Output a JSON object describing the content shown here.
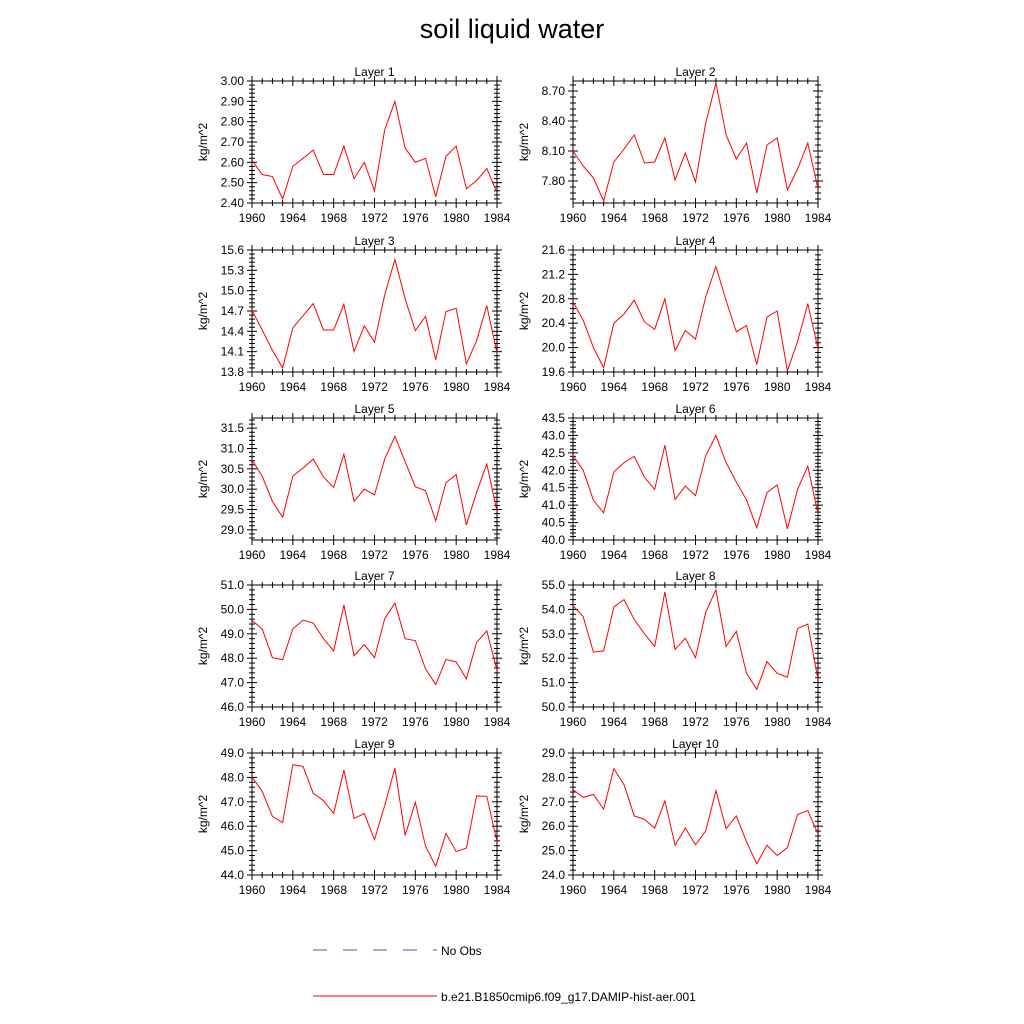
{
  "title": "soil liquid water",
  "legend": {
    "obs_label": "No Obs",
    "model_label": "b.e21.B1850cmip6.f09_g17.DAMIP-hist-aer.001",
    "obs_color": "#4a5aa8",
    "model_color": "#ff0000"
  },
  "chart_data": [
    {
      "type": "line",
      "title": "Layer 1",
      "ylabel": "kg/m^2",
      "xlim": [
        1960,
        1984
      ],
      "xticks": [
        "1960",
        "1964",
        "1968",
        "1972",
        "1976",
        "1980",
        "1984"
      ],
      "ylim": [
        2.4,
        3.0
      ],
      "yticks": [
        "2.40",
        "2.50",
        "2.60",
        "2.70",
        "2.80",
        "2.90",
        "3.00"
      ],
      "x": [
        1960,
        1961,
        1962,
        1963,
        1964,
        1965,
        1966,
        1967,
        1968,
        1969,
        1970,
        1971,
        1972,
        1973,
        1974,
        1975,
        1976,
        1977,
        1978,
        1979,
        1980,
        1981,
        1982,
        1983,
        1984
      ],
      "series": [
        {
          "name": "b.e21.B1850cmip6.f09_g17.DAMIP-hist-aer.001",
          "values": [
            2.61,
            2.54,
            2.53,
            2.42,
            2.58,
            2.62,
            2.66,
            2.54,
            2.54,
            2.68,
            2.52,
            2.6,
            2.46,
            2.76,
            2.9,
            2.67,
            2.6,
            2.62,
            2.43,
            2.63,
            2.68,
            2.47,
            2.51,
            2.57,
            2.45
          ]
        }
      ]
    },
    {
      "type": "line",
      "title": "Layer 2",
      "ylabel": "kg/m^2",
      "xlim": [
        1960,
        1984
      ],
      "xticks": [
        "1960",
        "1964",
        "1968",
        "1972",
        "1976",
        "1980",
        "1984"
      ],
      "ylim": [
        7.58,
        8.8
      ],
      "yticks": [
        "7.80",
        "8.10",
        "8.40",
        "8.70"
      ],
      "x": [
        1960,
        1961,
        1962,
        1963,
        1964,
        1965,
        1966,
        1967,
        1968,
        1969,
        1970,
        1971,
        1972,
        1973,
        1974,
        1975,
        1976,
        1977,
        1978,
        1979,
        1980,
        1981,
        1982,
        1983,
        1984
      ],
      "series": [
        {
          "name": "b.e21.B1850cmip6.f09_g17.DAMIP-hist-aer.001",
          "values": [
            8.1,
            7.95,
            7.83,
            7.6,
            7.99,
            8.12,
            8.26,
            7.98,
            7.99,
            8.23,
            7.81,
            8.08,
            7.79,
            8.38,
            8.78,
            8.26,
            8.02,
            8.18,
            7.68,
            8.16,
            8.23,
            7.71,
            7.92,
            8.18,
            7.72
          ]
        }
      ]
    },
    {
      "type": "line",
      "title": "Layer 3",
      "ylabel": "kg/m^2",
      "xlim": [
        1960,
        1984
      ],
      "xticks": [
        "1960",
        "1964",
        "1968",
        "1972",
        "1976",
        "1980",
        "1984"
      ],
      "ylim": [
        13.8,
        15.6
      ],
      "yticks": [
        "13.8",
        "14.1",
        "14.4",
        "14.7",
        "15.0",
        "15.3",
        "15.6"
      ],
      "x": [
        1960,
        1961,
        1962,
        1963,
        1964,
        1965,
        1966,
        1967,
        1968,
        1969,
        1970,
        1971,
        1972,
        1973,
        1974,
        1975,
        1976,
        1977,
        1978,
        1979,
        1980,
        1981,
        1982,
        1983,
        1984
      ],
      "series": [
        {
          "name": "b.e21.B1850cmip6.f09_g17.DAMIP-hist-aer.001",
          "values": [
            14.71,
            14.42,
            14.12,
            13.86,
            14.45,
            14.63,
            14.81,
            14.42,
            14.42,
            14.8,
            14.1,
            14.48,
            14.24,
            14.94,
            15.46,
            14.88,
            14.41,
            14.62,
            13.98,
            14.69,
            14.74,
            13.92,
            14.26,
            14.78,
            14.08
          ]
        }
      ]
    },
    {
      "type": "line",
      "title": "Layer 4",
      "ylabel": "kg/m^2",
      "xlim": [
        1960,
        1984
      ],
      "xticks": [
        "1960",
        "1964",
        "1968",
        "1972",
        "1976",
        "1980",
        "1984"
      ],
      "ylim": [
        19.6,
        21.6
      ],
      "yticks": [
        "19.6",
        "20.0",
        "20.4",
        "20.8",
        "21.2",
        "21.6"
      ],
      "x": [
        1960,
        1961,
        1962,
        1963,
        1964,
        1965,
        1966,
        1967,
        1968,
        1969,
        1970,
        1971,
        1972,
        1973,
        1974,
        1975,
        1976,
        1977,
        1978,
        1979,
        1980,
        1981,
        1982,
        1983,
        1984
      ],
      "series": [
        {
          "name": "b.e21.B1850cmip6.f09_g17.DAMIP-hist-aer.001",
          "values": [
            20.75,
            20.45,
            20.0,
            19.67,
            20.4,
            20.55,
            20.78,
            20.42,
            20.3,
            20.8,
            19.95,
            20.28,
            20.14,
            20.83,
            21.33,
            20.77,
            20.26,
            20.36,
            19.72,
            20.5,
            20.6,
            19.62,
            20.1,
            20.72,
            19.98
          ]
        }
      ]
    },
    {
      "type": "line",
      "title": "Layer 5",
      "ylabel": "kg/m^2",
      "xlim": [
        1960,
        1984
      ],
      "xticks": [
        "1960",
        "1964",
        "1968",
        "1972",
        "1976",
        "1980",
        "1984"
      ],
      "ylim": [
        28.75,
        31.75
      ],
      "yticks": [
        "29.0",
        "29.5",
        "30.0",
        "30.5",
        "31.0",
        "31.5"
      ],
      "x": [
        1960,
        1961,
        1962,
        1963,
        1964,
        1965,
        1966,
        1967,
        1968,
        1969,
        1970,
        1971,
        1972,
        1973,
        1974,
        1975,
        1976,
        1977,
        1978,
        1979,
        1980,
        1981,
        1982,
        1983,
        1984
      ],
      "series": [
        {
          "name": "b.e21.B1850cmip6.f09_g17.DAMIP-hist-aer.001",
          "values": [
            30.72,
            30.32,
            29.7,
            29.31,
            30.32,
            30.52,
            30.74,
            30.3,
            30.04,
            30.86,
            29.7,
            30.0,
            29.86,
            30.74,
            31.3,
            30.68,
            30.06,
            29.96,
            29.22,
            30.16,
            30.36,
            29.12,
            29.92,
            30.62,
            29.45
          ]
        }
      ]
    },
    {
      "type": "line",
      "title": "Layer 6",
      "ylabel": "kg/m^2",
      "xlim": [
        1960,
        1984
      ],
      "xticks": [
        "1960",
        "1964",
        "1968",
        "1972",
        "1976",
        "1980",
        "1984"
      ],
      "ylim": [
        40.0,
        43.5
      ],
      "yticks": [
        "40.0",
        "40.5",
        "41.0",
        "41.5",
        "42.0",
        "42.5",
        "43.0",
        "43.5"
      ],
      "x": [
        1960,
        1961,
        1962,
        1963,
        1964,
        1965,
        1966,
        1967,
        1968,
        1969,
        1970,
        1971,
        1972,
        1973,
        1974,
        1975,
        1976,
        1977,
        1978,
        1979,
        1980,
        1981,
        1982,
        1983,
        1984
      ],
      "series": [
        {
          "name": "b.e21.B1850cmip6.f09_g17.DAMIP-hist-aer.001",
          "values": [
            42.42,
            42.0,
            41.14,
            40.78,
            41.95,
            42.22,
            42.4,
            41.8,
            41.45,
            42.72,
            41.16,
            41.55,
            41.27,
            42.42,
            43.0,
            42.22,
            41.66,
            41.15,
            40.35,
            41.36,
            41.58,
            40.32,
            41.45,
            42.12,
            40.75
          ]
        }
      ]
    },
    {
      "type": "line",
      "title": "Layer 7",
      "ylabel": "kg/m^2",
      "xlim": [
        1960,
        1984
      ],
      "xticks": [
        "1960",
        "1964",
        "1968",
        "1972",
        "1976",
        "1980",
        "1984"
      ],
      "ylim": [
        46.0,
        51.0
      ],
      "yticks": [
        "46.0",
        "47.0",
        "48.0",
        "49.0",
        "50.0",
        "51.0"
      ],
      "x": [
        1960,
        1961,
        1962,
        1963,
        1964,
        1965,
        1966,
        1967,
        1968,
        1969,
        1970,
        1971,
        1972,
        1973,
        1974,
        1975,
        1976,
        1977,
        1978,
        1979,
        1980,
        1981,
        1982,
        1983,
        1984
      ],
      "series": [
        {
          "name": "b.e21.B1850cmip6.f09_g17.DAMIP-hist-aer.001",
          "values": [
            49.55,
            49.2,
            48.02,
            47.94,
            49.2,
            49.56,
            49.44,
            48.8,
            48.3,
            50.18,
            48.1,
            48.56,
            48.02,
            49.62,
            50.26,
            48.8,
            48.72,
            47.56,
            46.92,
            47.95,
            47.85,
            47.15,
            48.65,
            49.12,
            47.5
          ]
        }
      ]
    },
    {
      "type": "line",
      "title": "Layer 8",
      "ylabel": "kg/m^2",
      "xlim": [
        1960,
        1984
      ],
      "xticks": [
        "1960",
        "1964",
        "1968",
        "1972",
        "1976",
        "1980",
        "1984"
      ],
      "ylim": [
        50.0,
        55.0
      ],
      "yticks": [
        "50.0",
        "51.0",
        "52.0",
        "53.0",
        "54.0",
        "55.0"
      ],
      "x": [
        1960,
        1961,
        1962,
        1963,
        1964,
        1965,
        1966,
        1967,
        1968,
        1969,
        1970,
        1971,
        1972,
        1973,
        1974,
        1975,
        1976,
        1977,
        1978,
        1979,
        1980,
        1981,
        1982,
        1983,
        1984
      ],
      "series": [
        {
          "name": "b.e21.B1850cmip6.f09_g17.DAMIP-hist-aer.001",
          "values": [
            54.15,
            53.7,
            52.25,
            52.3,
            54.1,
            54.4,
            53.58,
            53.0,
            52.48,
            54.72,
            52.36,
            52.82,
            52.02,
            53.88,
            54.8,
            52.48,
            53.1,
            51.38,
            50.72,
            51.86,
            51.38,
            51.22,
            53.22,
            53.4,
            51.12
          ]
        }
      ]
    },
    {
      "type": "line",
      "title": "Layer 9",
      "ylabel": "kg/m^2",
      "xlim": [
        1960,
        1984
      ],
      "xticks": [
        "1960",
        "1964",
        "1968",
        "1972",
        "1976",
        "1980",
        "1984"
      ],
      "ylim": [
        44.0,
        49.0
      ],
      "yticks": [
        "44.0",
        "45.0",
        "46.0",
        "47.0",
        "48.0",
        "49.0"
      ],
      "x": [
        1960,
        1961,
        1962,
        1963,
        1964,
        1965,
        1966,
        1967,
        1968,
        1969,
        1970,
        1971,
        1972,
        1973,
        1974,
        1975,
        1976,
        1977,
        1978,
        1979,
        1980,
        1981,
        1982,
        1983,
        1984
      ],
      "series": [
        {
          "name": "b.e21.B1850cmip6.f09_g17.DAMIP-hist-aer.001",
          "values": [
            48.02,
            47.42,
            46.4,
            46.15,
            48.52,
            48.45,
            47.35,
            47.05,
            46.52,
            48.3,
            46.32,
            46.52,
            45.45,
            46.85,
            48.38,
            45.62,
            46.98,
            45.18,
            44.35,
            45.7,
            44.96,
            45.1,
            47.24,
            47.22,
            45.36
          ]
        }
      ]
    },
    {
      "type": "line",
      "title": "Layer 10",
      "ylabel": "kg/m^2",
      "xlim": [
        1960,
        1984
      ],
      "xticks": [
        "1960",
        "1964",
        "1968",
        "1972",
        "1976",
        "1980",
        "1984"
      ],
      "ylim": [
        24.0,
        29.0
      ],
      "yticks": [
        "24.0",
        "25.0",
        "26.0",
        "27.0",
        "28.0",
        "29.0"
      ],
      "x": [
        1960,
        1961,
        1962,
        1963,
        1964,
        1965,
        1966,
        1967,
        1968,
        1969,
        1970,
        1971,
        1972,
        1973,
        1974,
        1975,
        1976,
        1977,
        1978,
        1979,
        1980,
        1981,
        1982,
        1983,
        1984
      ],
      "series": [
        {
          "name": "b.e21.B1850cmip6.f09_g17.DAMIP-hist-aer.001",
          "values": [
            27.5,
            27.18,
            27.3,
            26.7,
            28.36,
            27.7,
            26.42,
            26.28,
            25.92,
            27.04,
            25.22,
            25.92,
            25.24,
            25.8,
            27.46,
            25.9,
            26.42,
            25.36,
            24.46,
            25.22,
            24.8,
            25.12,
            26.48,
            26.64,
            25.68
          ]
        }
      ]
    }
  ]
}
